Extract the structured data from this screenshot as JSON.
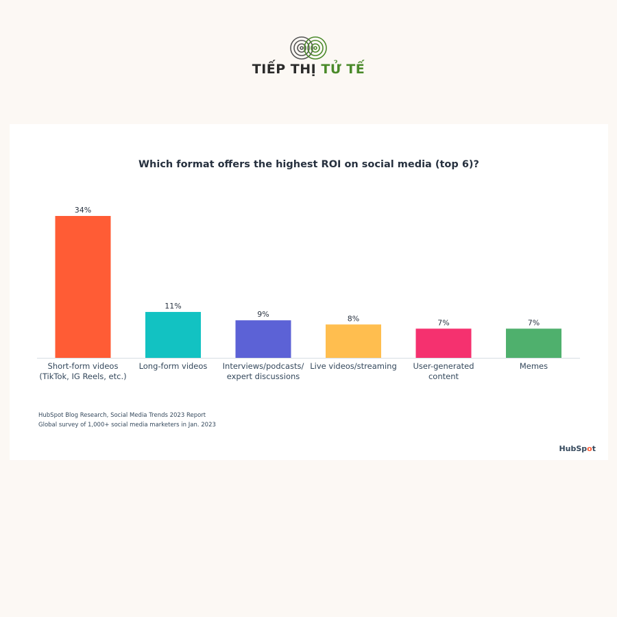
{
  "brand": {
    "name_main": "TIẾP THỊ ",
    "name_accent": "TỬ TẾ",
    "logo_icon": "concentric-circles-logo",
    "colors": {
      "text": "#2b2b2b",
      "accent": "#4a8a2a"
    }
  },
  "chart_data": {
    "type": "bar",
    "title": "Which format offers the highest ROI on social media (top 6)?",
    "categories": [
      [
        "Short-form videos",
        "(TikTok, IG Reels, etc.)"
      ],
      [
        "Long-form videos"
      ],
      [
        "Interviews/podcasts/",
        "expert discussions"
      ],
      [
        "Live videos/streaming"
      ],
      [
        "User-generated",
        "content"
      ],
      [
        "Memes"
      ]
    ],
    "values": [
      34,
      11,
      9,
      8,
      7,
      7
    ],
    "value_labels": [
      "34%",
      "11%",
      "9%",
      "8%",
      "7%",
      "7%"
    ],
    "colors": [
      "#ff5c35",
      "#12c2c2",
      "#5c62d6",
      "#ffbe4f",
      "#f5316f",
      "#4fb06d"
    ],
    "ylim": [
      0,
      34
    ],
    "grid": false,
    "xlabel": "",
    "ylabel": ""
  },
  "source": {
    "line1": "HubSpot Blog Research, Social Media Trends 2023 Report",
    "line2": "Global survey of 1,000+ social media marketers in Jan. 2023"
  },
  "footer": {
    "logo_text_a": "HubSp",
    "logo_text_dot": "o",
    "logo_text_b": "t"
  }
}
